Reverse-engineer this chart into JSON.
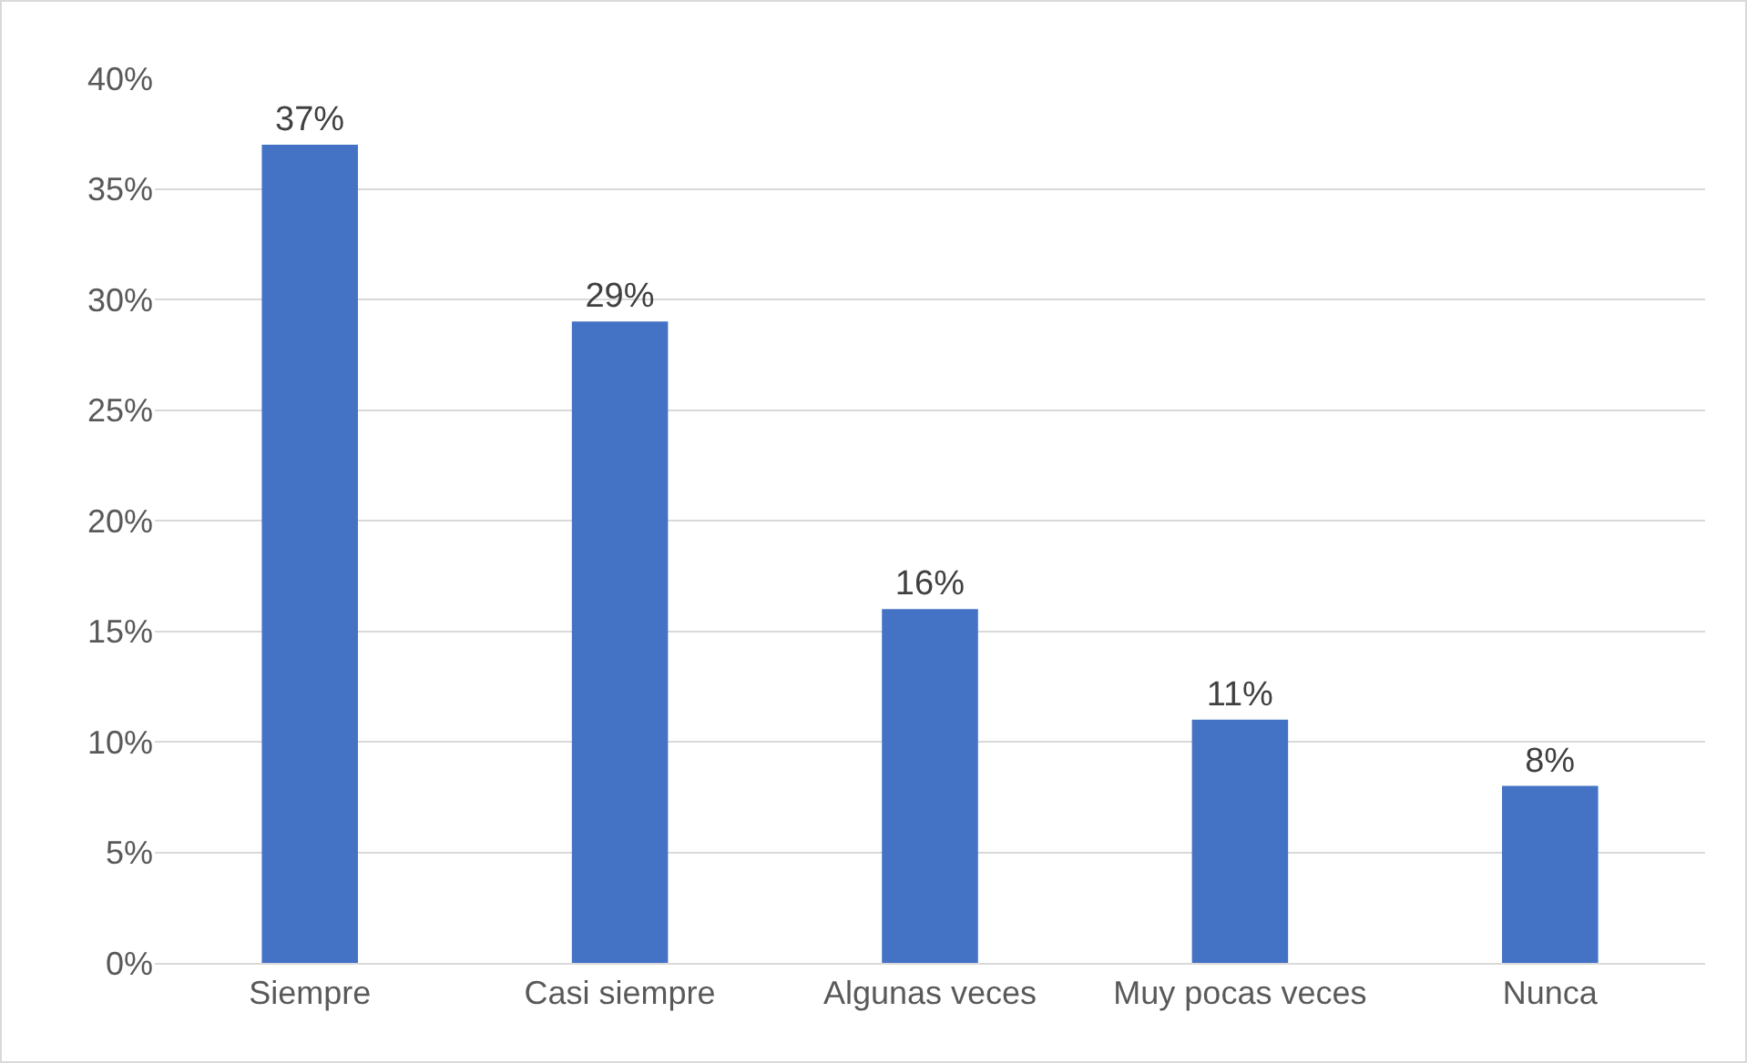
{
  "chart_data": {
    "type": "bar",
    "categories": [
      "Siempre",
      "Casi siempre",
      "Algunas veces",
      "Muy pocas veces",
      "Nunca"
    ],
    "values": [
      37,
      29,
      16,
      11,
      8
    ],
    "value_labels": [
      "37%",
      "29%",
      "16%",
      "11%",
      "8%"
    ],
    "color": "#4472c4",
    "ylim": [
      0,
      40
    ],
    "yticks": [
      {
        "value": 0,
        "label": "0%"
      },
      {
        "value": 5,
        "label": "5%"
      },
      {
        "value": 10,
        "label": "10%"
      },
      {
        "value": 15,
        "label": "15%"
      },
      {
        "value": 20,
        "label": "20%"
      },
      {
        "value": 25,
        "label": "25%"
      },
      {
        "value": 30,
        "label": "30%"
      },
      {
        "value": 35,
        "label": "35%"
      },
      {
        "value": 40,
        "label": "40%"
      }
    ],
    "grid": "y",
    "legend": false
  }
}
